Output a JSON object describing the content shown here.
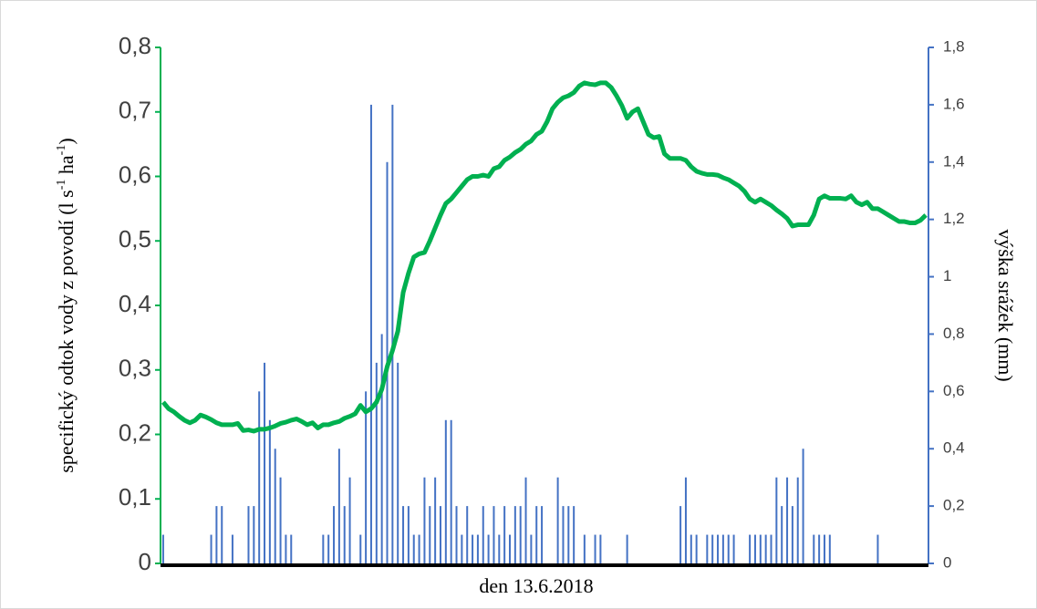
{
  "chart_data": {
    "type": "combo",
    "y_label_parts": [
      "specifický odtok vody z povodí (l s",
      "-1",
      " ha",
      "-1",
      ")"
    ],
    "y2_label": "výška srážek (mm)",
    "x_label": "den 13.6.2018",
    "ylim": [
      0,
      0.8
    ],
    "yticks": [
      0,
      {
        "value": 0.1,
        "label": "0,1"
      },
      {
        "value": 0.2,
        "label": "0,2"
      },
      {
        "value": 0.3,
        "label": "0,3"
      },
      {
        "value": 0.4,
        "label": "0,4"
      },
      {
        "value": 0.5,
        "label": "0,5"
      },
      {
        "value": 0.6,
        "label": "0,6"
      },
      {
        "value": 0.7,
        "label": "0,7"
      },
      {
        "value": 0.8,
        "label": "0,8"
      }
    ],
    "y2lim": [
      0,
      1.8
    ],
    "y2ticks": [
      0,
      {
        "value": 0.2,
        "label": "0,2"
      },
      {
        "value": 0.4,
        "label": "0,4"
      },
      {
        "value": 0.6,
        "label": "0,6"
      },
      {
        "value": 0.8,
        "label": "0,8"
      },
      1,
      {
        "value": 1.2,
        "label": "1,2"
      },
      {
        "value": 1.4,
        "label": "1,4"
      },
      {
        "value": 1.6,
        "label": "1,6"
      },
      {
        "value": 1.8,
        "label": "1,8"
      }
    ],
    "series": [
      {
        "type": "bar",
        "axis": "y2",
        "color": "#4472c4",
        "values": [
          0.1,
          0,
          0,
          0,
          0,
          0,
          0,
          0,
          0,
          0.1,
          0.2,
          0.2,
          0,
          0.1,
          0,
          0,
          0.2,
          0.2,
          0.6,
          0.7,
          0.5,
          0.4,
          0.3,
          0.1,
          0.1,
          0,
          0,
          0,
          0,
          0,
          0.1,
          0.1,
          0.2,
          0.4,
          0.2,
          0.3,
          0,
          0.1,
          0.6,
          1.6,
          0.7,
          0.8,
          1.4,
          1.6,
          0.7,
          0.2,
          0.2,
          0.1,
          0.1,
          0.3,
          0.2,
          0.3,
          0.2,
          0.5,
          0.5,
          0.2,
          0.1,
          0.2,
          0.1,
          0.1,
          0.2,
          0.1,
          0.2,
          0.1,
          0.2,
          0.1,
          0.2,
          0.2,
          0.3,
          0.1,
          0.2,
          0.2,
          0,
          0,
          0.3,
          0.2,
          0.2,
          0.2,
          0,
          0.1,
          0,
          0.1,
          0.1,
          0,
          0,
          0,
          0,
          0.1,
          0,
          0,
          0,
          0,
          0,
          0,
          0,
          0,
          0,
          0.2,
          0.3,
          0.1,
          0.1,
          0,
          0.1,
          0.1,
          0.1,
          0.1,
          0.1,
          0.1,
          0,
          0,
          0.1,
          0.1,
          0.1,
          0.1,
          0.1,
          0.3,
          0.2,
          0.3,
          0.2,
          0.3,
          0.4,
          0,
          0.1,
          0.1,
          0.1,
          0.1,
          0,
          0,
          0,
          0,
          0,
          0,
          0,
          0,
          0.1,
          0,
          0,
          0,
          0,
          0,
          0,
          0,
          0,
          0
        ]
      },
      {
        "type": "line",
        "color": "#00b050",
        "values": [
          0.25,
          0.24,
          0.235,
          0.228,
          0.222,
          0.218,
          0.222,
          0.23,
          0.227,
          0.223,
          0.218,
          0.215,
          0.215,
          0.215,
          0.217,
          0.206,
          0.207,
          0.205,
          0.208,
          0.208,
          0.21,
          0.213,
          0.217,
          0.219,
          0.222,
          0.224,
          0.22,
          0.215,
          0.218,
          0.21,
          0.215,
          0.215,
          0.218,
          0.22,
          0.225,
          0.228,
          0.232,
          0.245,
          0.235,
          0.24,
          0.25,
          0.27,
          0.305,
          0.33,
          0.36,
          0.42,
          0.45,
          0.475,
          0.48,
          0.482,
          0.5,
          0.52,
          0.54,
          0.558,
          0.565,
          0.575,
          0.585,
          0.595,
          0.6,
          0.6,
          0.602,
          0.6,
          0.612,
          0.615,
          0.625,
          0.63,
          0.637,
          0.642,
          0.65,
          0.655,
          0.665,
          0.67,
          0.685,
          0.705,
          0.715,
          0.722,
          0.725,
          0.73,
          0.74,
          0.745,
          0.743,
          0.742,
          0.745,
          0.745,
          0.738,
          0.725,
          0.71,
          0.69,
          0.7,
          0.705,
          0.685,
          0.665,
          0.66,
          0.662,
          0.635,
          0.628,
          0.628,
          0.628,
          0.625,
          0.615,
          0.608,
          0.605,
          0.603,
          0.603,
          0.602,
          0.598,
          0.595,
          0.59,
          0.585,
          0.577,
          0.565,
          0.56,
          0.565,
          0.56,
          0.555,
          0.548,
          0.542,
          0.535,
          0.523,
          0.525,
          0.525,
          0.525,
          0.54,
          0.565,
          0.57,
          0.566,
          0.566,
          0.566,
          0.565,
          0.57,
          0.56,
          0.556,
          0.56,
          0.55,
          0.55,
          0.545,
          0.54,
          0.535,
          0.53,
          0.53,
          0.528,
          0.528,
          0.532,
          0.54
        ]
      }
    ]
  }
}
